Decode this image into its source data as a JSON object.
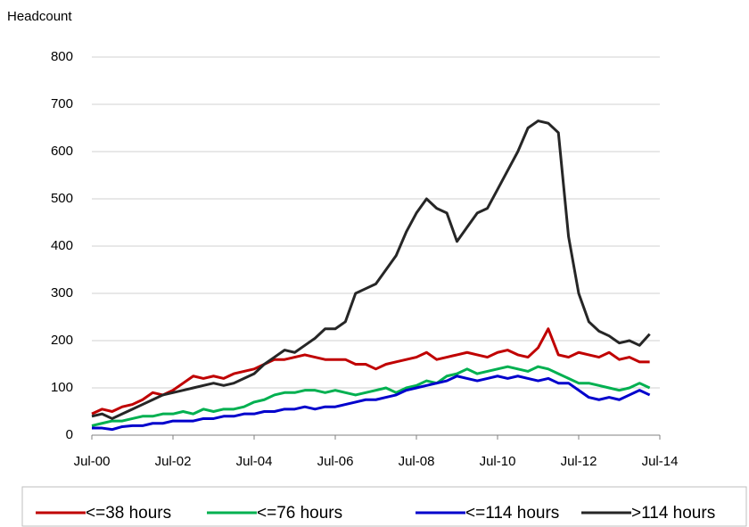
{
  "chart_data": {
    "type": "line",
    "y_axis_label": "Headcount",
    "x": [
      "2000-07",
      "2000-10",
      "2001-01",
      "2001-04",
      "2001-07",
      "2001-10",
      "2002-01",
      "2002-04",
      "2002-07",
      "2002-10",
      "2003-01",
      "2003-04",
      "2003-07",
      "2003-10",
      "2004-01",
      "2004-04",
      "2004-07",
      "2004-10",
      "2005-01",
      "2005-04",
      "2005-07",
      "2005-10",
      "2006-01",
      "2006-04",
      "2006-07",
      "2006-10",
      "2007-01",
      "2007-04",
      "2007-07",
      "2007-10",
      "2008-01",
      "2008-04",
      "2008-07",
      "2008-10",
      "2009-01",
      "2009-04",
      "2009-07",
      "2009-10",
      "2010-01",
      "2010-04",
      "2010-07",
      "2010-10",
      "2011-01",
      "2011-04",
      "2011-07",
      "2011-10",
      "2012-01",
      "2012-04",
      "2012-07",
      "2012-10",
      "2013-01",
      "2013-04",
      "2013-07",
      "2013-10",
      "2014-01",
      "2014-04"
    ],
    "series": [
      {
        "name": "<=38 hours",
        "color": "#c00000",
        "values": [
          45,
          55,
          50,
          60,
          65,
          75,
          90,
          85,
          95,
          110,
          125,
          120,
          125,
          120,
          130,
          135,
          140,
          150,
          160,
          160,
          165,
          170,
          165,
          160,
          160,
          160,
          150,
          150,
          140,
          150,
          155,
          160,
          165,
          175,
          160,
          165,
          170,
          175,
          170,
          165,
          175,
          180,
          170,
          165,
          185,
          225,
          170,
          165,
          175,
          170,
          165,
          175,
          160,
          165,
          155,
          155
        ]
      },
      {
        "name": "<=76 hours",
        "color": "#00b050",
        "values": [
          20,
          25,
          30,
          30,
          35,
          40,
          40,
          45,
          45,
          50,
          45,
          55,
          50,
          55,
          55,
          60,
          70,
          75,
          85,
          90,
          90,
          95,
          95,
          90,
          95,
          90,
          85,
          90,
          95,
          100,
          90,
          100,
          105,
          115,
          110,
          125,
          130,
          140,
          130,
          135,
          140,
          145,
          140,
          135,
          145,
          140,
          130,
          120,
          110,
          110,
          105,
          100,
          95,
          100,
          110,
          100
        ]
      },
      {
        "name": "<=114 hours",
        "color": "#0000cc",
        "values": [
          15,
          15,
          12,
          18,
          20,
          20,
          25,
          25,
          30,
          30,
          30,
          35,
          35,
          40,
          40,
          45,
          45,
          50,
          50,
          55,
          55,
          60,
          55,
          60,
          60,
          65,
          70,
          75,
          75,
          80,
          85,
          95,
          100,
          105,
          110,
          115,
          125,
          120,
          115,
          120,
          125,
          120,
          125,
          120,
          115,
          120,
          110,
          110,
          95,
          80,
          75,
          80,
          75,
          85,
          95,
          85
        ]
      },
      {
        "name": ">114 hours",
        "color": "#262626",
        "values": [
          40,
          45,
          35,
          45,
          55,
          65,
          75,
          85,
          90,
          95,
          100,
          105,
          110,
          105,
          110,
          120,
          130,
          150,
          165,
          180,
          175,
          190,
          205,
          225,
          225,
          240,
          300,
          310,
          320,
          350,
          380,
          430,
          470,
          500,
          480,
          470,
          410,
          440,
          470,
          480,
          520,
          560,
          600,
          650,
          665,
          660,
          640,
          420,
          300,
          240,
          220,
          210,
          195,
          200,
          190,
          214
        ]
      }
    ],
    "xlim": [
      "2000-07",
      "2014-07"
    ],
    "xticks": [
      {
        "value": "2000-07",
        "label": "Jul-00"
      },
      {
        "value": "2002-07",
        "label": "Jul-02"
      },
      {
        "value": "2004-07",
        "label": "Jul-04"
      },
      {
        "value": "2006-07",
        "label": "Jul-06"
      },
      {
        "value": "2008-07",
        "label": "Jul-08"
      },
      {
        "value": "2010-07",
        "label": "Jul-10"
      },
      {
        "value": "2012-07",
        "label": "Jul-12"
      },
      {
        "value": "2014-07",
        "label": "Jul-14"
      }
    ],
    "ylim": [
      0,
      800
    ],
    "yticks": [
      0,
      100,
      200,
      300,
      400,
      500,
      600,
      700,
      800
    ],
    "grid": true
  }
}
